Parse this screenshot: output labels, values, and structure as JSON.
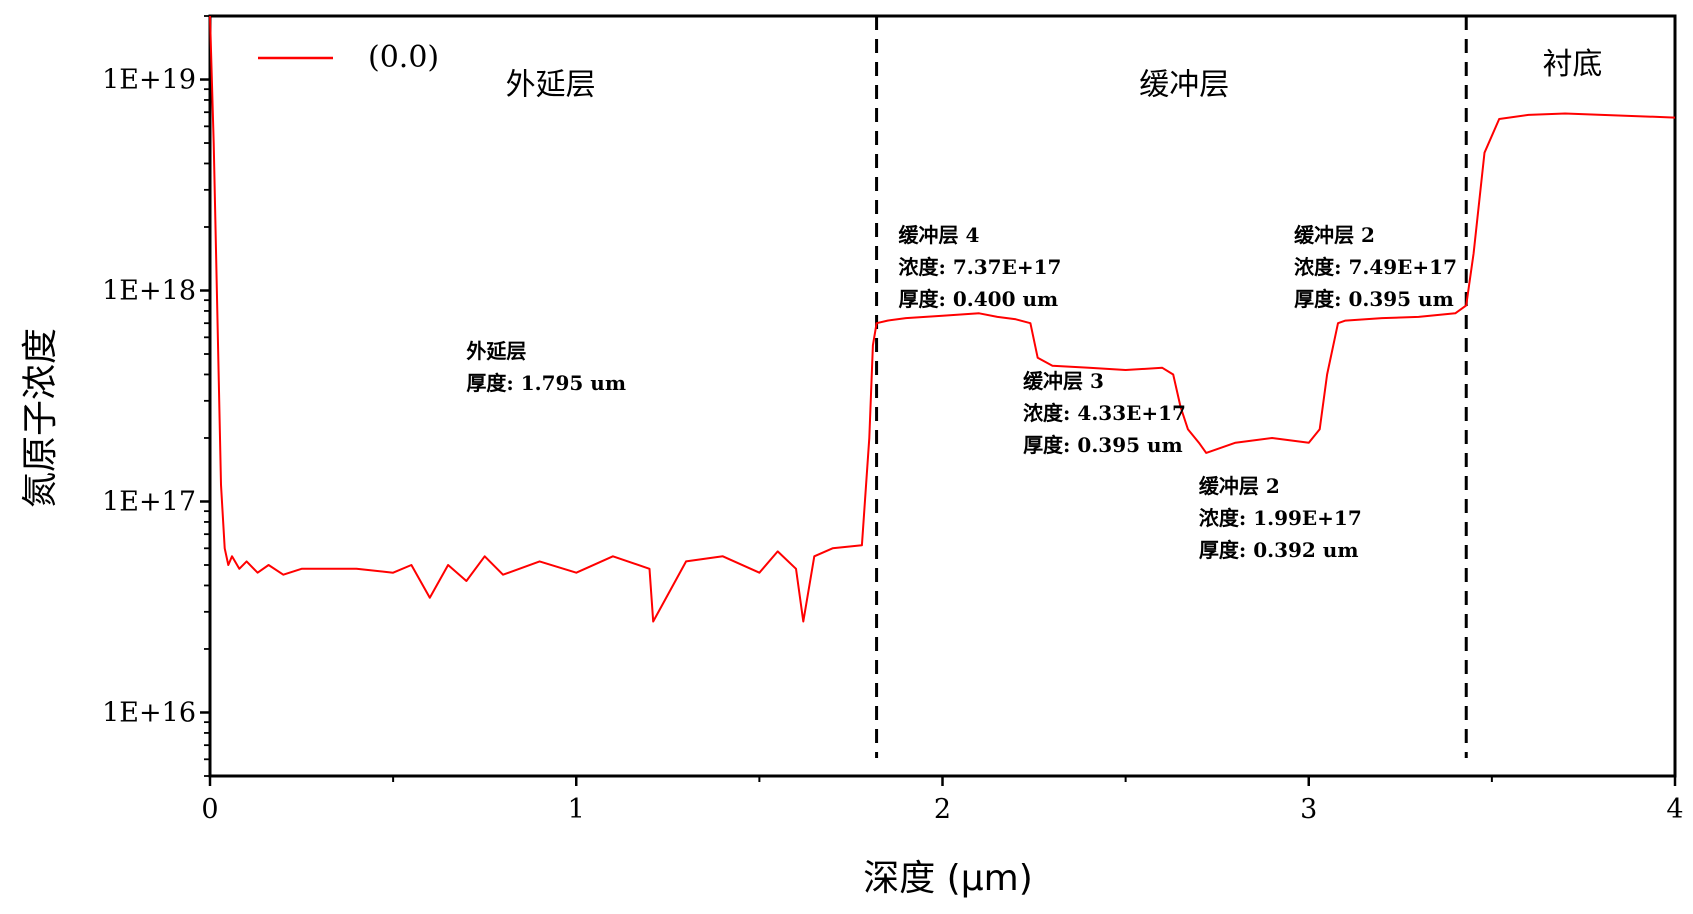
{
  "chart_data": {
    "type": "line",
    "title": "",
    "xlabel": "深度 (μm)",
    "ylabel": "氮原子浓度",
    "xlim": [
      0,
      4
    ],
    "ylim": [
      5000000000000000.0,
      2e+19
    ],
    "yscale": "log",
    "x_ticks": [
      "0",
      "1",
      "2",
      "3",
      "4"
    ],
    "y_ticks": [
      "1E+16",
      "1E+17",
      "1E+18",
      "1E+19"
    ],
    "grid": false,
    "legend_position": "top-left",
    "series": [
      {
        "name": "(0.0)",
        "color": "#ff0000",
        "x": [
          0.0,
          0.01,
          0.02,
          0.03,
          0.04,
          0.05,
          0.06,
          0.08,
          0.1,
          0.13,
          0.16,
          0.2,
          0.25,
          0.3,
          0.4,
          0.5,
          0.55,
          0.6,
          0.65,
          0.7,
          0.75,
          0.8,
          0.9,
          1.0,
          1.1,
          1.2,
          1.21,
          1.3,
          1.4,
          1.5,
          1.55,
          1.6,
          1.62,
          1.65,
          1.7,
          1.78,
          1.8,
          1.81,
          1.82,
          1.85,
          1.9,
          2.0,
          2.1,
          2.15,
          2.2,
          2.24,
          2.26,
          2.3,
          2.4,
          2.5,
          2.6,
          2.63,
          2.65,
          2.67,
          2.7,
          2.72,
          2.8,
          2.9,
          3.0,
          3.03,
          3.05,
          3.08,
          3.1,
          3.2,
          3.3,
          3.4,
          3.43,
          3.45,
          3.48,
          3.52,
          3.6,
          3.7,
          3.8,
          3.9,
          4.0
        ],
        "y": [
          2e+19,
          5e+18,
          8e+17,
          1.2e+17,
          6e+16,
          5e+16,
          5.5e+16,
          4.8e+16,
          5.2e+16,
          4.6e+16,
          5e+16,
          4.5e+16,
          4.8e+16,
          4.8e+16,
          4.8e+16,
          4.6e+16,
          5e+16,
          3.5e+16,
          5e+16,
          4.2e+16,
          5.5e+16,
          4.5e+16,
          5.2e+16,
          4.6e+16,
          5.5e+16,
          4.8e+16,
          2.7e+16,
          5.2e+16,
          5.5e+16,
          4.6e+16,
          5.8e+16,
          4.8e+16,
          2.7e+16,
          5.5e+16,
          6e+16,
          6.2e+16,
          2e+17,
          5.5e+17,
          7e+17,
          7.2e+17,
          7.4e+17,
          7.6e+17,
          7.8e+17,
          7.5e+17,
          7.3e+17,
          7e+17,
          4.8e+17,
          4.4e+17,
          4.3e+17,
          4.2e+17,
          4.3e+17,
          4e+17,
          2.8e+17,
          2.2e+17,
          1.9e+17,
          1.7e+17,
          1.9e+17,
          2e+17,
          1.9e+17,
          2.2e+17,
          4e+17,
          7e+17,
          7.2e+17,
          7.4e+17,
          7.5e+17,
          7.8e+17,
          8.5e+17,
          1.5e+18,
          4.5e+18,
          6.5e+18,
          6.8e+18,
          6.9e+18,
          6.8e+18,
          6.7e+18,
          6.6e+18
        ]
      }
    ],
    "separators_x": [
      1.82,
      3.43
    ],
    "region_labels": [
      {
        "text": "外延层",
        "x": 0.93,
        "y": 8.5e+18
      },
      {
        "text": "缓冲层",
        "x": 2.66,
        "y": 8.5e+18
      },
      {
        "text": "衬底",
        "x": 3.72,
        "y": 1.06e+19
      }
    ],
    "annotations": [
      {
        "lines": [
          "外延层",
          "厚度: 1.795 um"
        ],
        "x": 0.7,
        "y": 4.8e+17
      },
      {
        "lines": [
          "缓冲层 4",
          "浓度: 7.37E+17",
          "厚度: 0.400 um"
        ],
        "x": 1.88,
        "y": 1.7e+18
      },
      {
        "lines": [
          "缓冲层 3",
          "浓度: 4.33E+17",
          "厚度: 0.395 um"
        ],
        "x": 2.22,
        "y": 3.45e+17
      },
      {
        "lines": [
          "缓冲层 2",
          "浓度: 1.99E+17",
          "厚度: 0.392 um"
        ],
        "x": 2.7,
        "y": 1.1e+17
      },
      {
        "lines": [
          "缓冲层 2",
          "浓度: 7.49E+17",
          "厚度: 0.395 um"
        ],
        "x": 2.96,
        "y": 1.7e+18
      }
    ]
  }
}
